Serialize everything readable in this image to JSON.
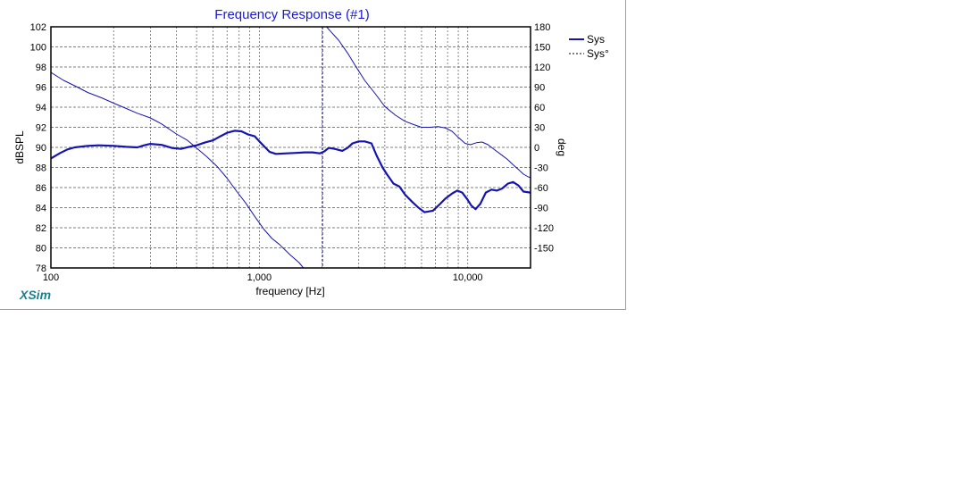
{
  "app": {
    "brand": "XSim"
  },
  "chart_data": {
    "type": "line",
    "title": "Frequency Response (#1)",
    "xlabel": "frequency [Hz]",
    "ylabel": "dBSPL",
    "y2label": "deg",
    "xscale": "log",
    "xlim": [
      100,
      20000
    ],
    "ylim": [
      78,
      102
    ],
    "y2lim": [
      -180,
      180
    ],
    "x_tick_labels": [
      {
        "value": 100,
        "label": "100"
      },
      {
        "value": 1000,
        "label": "1,000"
      },
      {
        "value": 10000,
        "label": "10,000"
      }
    ],
    "y_ticks": [
      78,
      80,
      82,
      84,
      86,
      88,
      90,
      92,
      94,
      96,
      98,
      100,
      102
    ],
    "y2_ticks": [
      {
        "value": 180,
        "label": "180"
      },
      {
        "value": 150,
        "label": "150"
      },
      {
        "value": 120,
        "label": "120"
      },
      {
        "value": 90,
        "label": "90"
      },
      {
        "value": 60,
        "label": "60"
      },
      {
        "value": 30,
        "label": "30"
      },
      {
        "value": 0,
        "label": "0"
      },
      {
        "value": -30,
        "label": "-30"
      },
      {
        "value": -60,
        "label": "-60"
      },
      {
        "value": -90,
        "label": "-90"
      },
      {
        "value": -120,
        "label": "-120"
      },
      {
        "value": -150,
        "label": "-150"
      }
    ],
    "grid": true,
    "legend_position": "right",
    "legend": [
      {
        "label": "Sys",
        "style": "solid"
      },
      {
        "label": "Sys°",
        "style": "dashed"
      }
    ],
    "series": [
      {
        "name": "Sys",
        "axis": "left",
        "color": "#1414b4",
        "width": 2.2,
        "points": [
          [
            100,
            88.9
          ],
          [
            110,
            89.4
          ],
          [
            120,
            89.8
          ],
          [
            130,
            90.0
          ],
          [
            150,
            90.15
          ],
          [
            170,
            90.2
          ],
          [
            200,
            90.15
          ],
          [
            230,
            90.05
          ],
          [
            260,
            90.0
          ],
          [
            280,
            90.2
          ],
          [
            300,
            90.35
          ],
          [
            340,
            90.25
          ],
          [
            380,
            89.95
          ],
          [
            420,
            89.85
          ],
          [
            460,
            90.05
          ],
          [
            500,
            90.2
          ],
          [
            550,
            90.5
          ],
          [
            600,
            90.7
          ],
          [
            650,
            91.1
          ],
          [
            700,
            91.45
          ],
          [
            760,
            91.65
          ],
          [
            820,
            91.6
          ],
          [
            880,
            91.3
          ],
          [
            950,
            91.1
          ],
          [
            1000,
            90.6
          ],
          [
            1060,
            90.05
          ],
          [
            1120,
            89.55
          ],
          [
            1200,
            89.35
          ],
          [
            1350,
            89.4
          ],
          [
            1500,
            89.45
          ],
          [
            1650,
            89.5
          ],
          [
            1800,
            89.5
          ],
          [
            1950,
            89.4
          ],
          [
            2050,
            89.6
          ],
          [
            2150,
            89.95
          ],
          [
            2300,
            89.85
          ],
          [
            2500,
            89.65
          ],
          [
            2650,
            89.95
          ],
          [
            2800,
            90.4
          ],
          [
            3000,
            90.6
          ],
          [
            3200,
            90.6
          ],
          [
            3450,
            90.4
          ],
          [
            3650,
            89.2
          ],
          [
            3900,
            88.0
          ],
          [
            4100,
            87.3
          ],
          [
            4400,
            86.4
          ],
          [
            4700,
            86.1
          ],
          [
            5000,
            85.3
          ],
          [
            5400,
            84.6
          ],
          [
            5800,
            84.0
          ],
          [
            6200,
            83.55
          ],
          [
            6800,
            83.7
          ],
          [
            7300,
            84.3
          ],
          [
            7800,
            84.9
          ],
          [
            8400,
            85.4
          ],
          [
            8900,
            85.7
          ],
          [
            9400,
            85.5
          ],
          [
            9900,
            84.9
          ],
          [
            10400,
            84.2
          ],
          [
            10900,
            83.85
          ],
          [
            11500,
            84.4
          ],
          [
            12200,
            85.5
          ],
          [
            13000,
            85.8
          ],
          [
            13800,
            85.7
          ],
          [
            14600,
            85.9
          ],
          [
            15600,
            86.4
          ],
          [
            16500,
            86.55
          ],
          [
            17500,
            86.2
          ],
          [
            18500,
            85.6
          ],
          [
            20000,
            85.5
          ]
        ]
      },
      {
        "name": "Sys°",
        "axis": "right",
        "color": "#1414b4",
        "width": 1,
        "points": [
          [
            100,
            112
          ],
          [
            115,
            100
          ],
          [
            130,
            92
          ],
          [
            150,
            82
          ],
          [
            175,
            74
          ],
          [
            200,
            66
          ],
          [
            230,
            58
          ],
          [
            260,
            51
          ],
          [
            300,
            44
          ],
          [
            340,
            35
          ],
          [
            400,
            20
          ],
          [
            450,
            11
          ],
          [
            500,
            -1
          ],
          [
            560,
            -14
          ],
          [
            630,
            -29
          ],
          [
            700,
            -46
          ],
          [
            780,
            -66
          ],
          [
            860,
            -83
          ],
          [
            950,
            -103
          ],
          [
            1050,
            -122
          ],
          [
            1150,
            -136
          ],
          [
            1250,
            -145
          ],
          [
            1400,
            -160
          ],
          [
            1550,
            -172
          ],
          [
            1700,
            -187
          ],
          [
            1850,
            -203
          ],
          [
            2000,
            -218
          ],
          [
            2020,
            183
          ],
          [
            2100,
            180
          ],
          [
            2200,
            173
          ],
          [
            2400,
            160
          ],
          [
            2650,
            141
          ],
          [
            2900,
            121
          ],
          [
            3200,
            100
          ],
          [
            3600,
            80
          ],
          [
            4000,
            61
          ],
          [
            4500,
            48
          ],
          [
            5000,
            39
          ],
          [
            5500,
            34
          ],
          [
            6000,
            30
          ],
          [
            6600,
            30
          ],
          [
            7200,
            31
          ],
          [
            7800,
            29
          ],
          [
            8400,
            24
          ],
          [
            9000,
            15
          ],
          [
            9700,
            6
          ],
          [
            10300,
            4
          ],
          [
            11000,
            7
          ],
          [
            11700,
            8
          ],
          [
            12500,
            4
          ],
          [
            13500,
            -4
          ],
          [
            14500,
            -11
          ],
          [
            15500,
            -18
          ],
          [
            16500,
            -26
          ],
          [
            17500,
            -33
          ],
          [
            18500,
            -40
          ],
          [
            19500,
            -44
          ],
          [
            20000,
            -45
          ]
        ]
      }
    ]
  }
}
